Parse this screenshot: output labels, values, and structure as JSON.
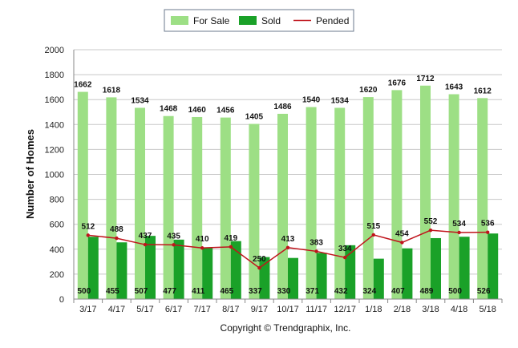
{
  "chart_data": {
    "type": "bar",
    "categories": [
      "3/17",
      "4/17",
      "5/17",
      "6/17",
      "7/17",
      "8/17",
      "9/17",
      "10/17",
      "11/17",
      "12/17",
      "1/18",
      "2/18",
      "3/18",
      "4/18",
      "5/18"
    ],
    "series": [
      {
        "name": "For Sale",
        "kind": "bar",
        "color": "#9ddf85",
        "values": [
          1662,
          1618,
          1534,
          1468,
          1460,
          1456,
          1405,
          1486,
          1540,
          1534,
          1620,
          1676,
          1712,
          1643,
          1612
        ]
      },
      {
        "name": "Sold",
        "kind": "bar",
        "color": "#1aa128",
        "values": [
          500,
          455,
          507,
          477,
          411,
          465,
          337,
          330,
          371,
          432,
          324,
          407,
          489,
          500,
          526
        ]
      },
      {
        "name": "Pended",
        "kind": "line",
        "color": "#c0141c",
        "values": [
          512,
          488,
          437,
          435,
          410,
          419,
          250,
          413,
          383,
          334,
          515,
          454,
          552,
          534,
          536
        ]
      }
    ],
    "ylabel": "Number of Homes",
    "xlabel": "",
    "ylim": [
      0,
      2000
    ],
    "yticks": [
      0,
      200,
      400,
      600,
      800,
      1000,
      1200,
      1400,
      1600,
      1800,
      2000
    ],
    "grid": true,
    "legend": "top-center",
    "copyright": "Copyright © Trendgraphix, Inc."
  }
}
